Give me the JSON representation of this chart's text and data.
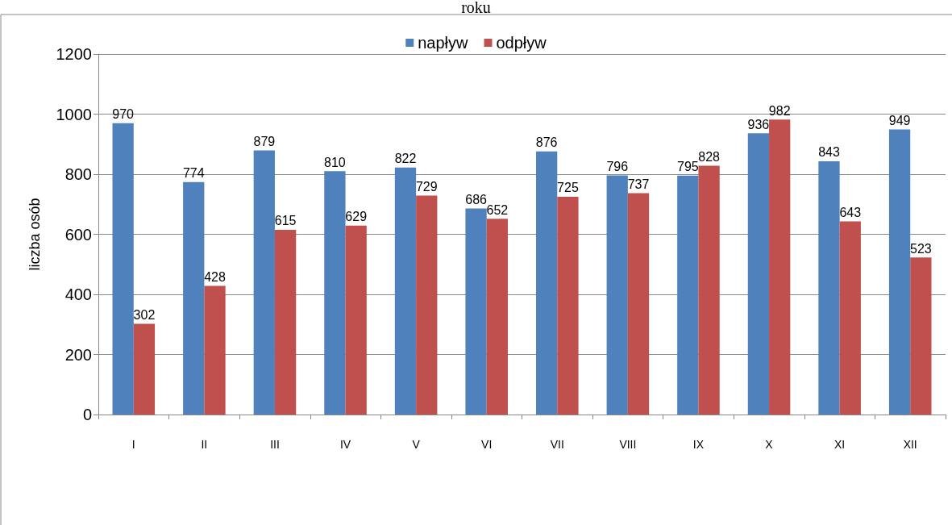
{
  "chart_data": {
    "type": "bar",
    "title": "roku",
    "ylabel": "liczba osób",
    "categories": [
      "I",
      "II",
      "III",
      "IV",
      "V",
      "VI",
      "VII",
      "VIII",
      "IX",
      "X",
      "XI",
      "XII"
    ],
    "series": [
      {
        "name": "napływ",
        "color": "#4f81bd",
        "values": [
          970,
          774,
          879,
          810,
          822,
          686,
          876,
          796,
          795,
          936,
          843,
          949
        ]
      },
      {
        "name": "odpływ",
        "color": "#c0504d",
        "values": [
          302,
          428,
          615,
          629,
          729,
          652,
          725,
          737,
          828,
          982,
          643,
          523
        ]
      }
    ],
    "ylim": [
      0,
      1200
    ],
    "yticks": [
      0,
      200,
      400,
      600,
      800,
      1000,
      1200
    ],
    "grid": "y",
    "legend": "top",
    "data_labels": true
  }
}
